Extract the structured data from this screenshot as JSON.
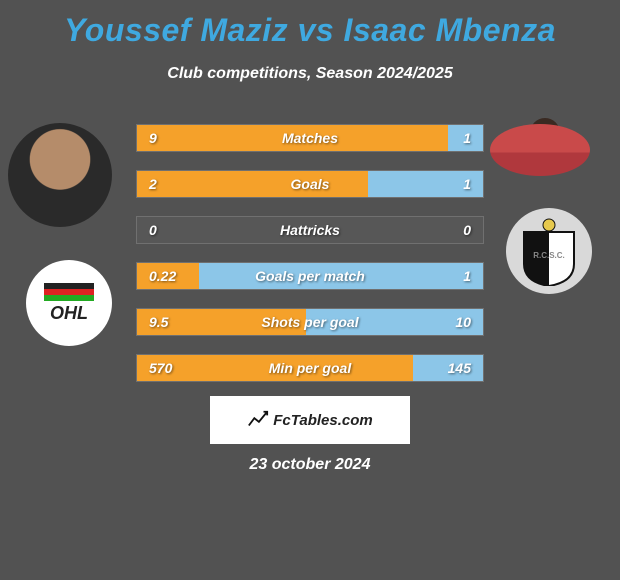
{
  "title": "Youssef Maziz vs Isaac Mbenza",
  "subtitle": "Club competitions, Season 2024/2025",
  "footer_brand": "FcTables.com",
  "date": "23 october 2024",
  "colors": {
    "left_bar": "#f5a12a",
    "right_bar": "#8cc6e8",
    "title": "#3fa9e0",
    "background": "#525252"
  },
  "players": {
    "left_name": "Youssef Maziz",
    "right_name": "Isaac Mbenza",
    "left_club": "OHL",
    "right_club": "R.C.S.C."
  },
  "stats": [
    {
      "label": "Matches",
      "left_display": "9",
      "right_display": "1",
      "left_pct": 90,
      "right_pct": 10
    },
    {
      "label": "Goals",
      "left_display": "2",
      "right_display": "1",
      "left_pct": 66.7,
      "right_pct": 33.3
    },
    {
      "label": "Hattricks",
      "left_display": "0",
      "right_display": "0",
      "left_pct": 0,
      "right_pct": 0
    },
    {
      "label": "Goals per match",
      "left_display": "0.22",
      "right_display": "1",
      "left_pct": 18,
      "right_pct": 82
    },
    {
      "label": "Shots per goal",
      "left_display": "9.5",
      "right_display": "10",
      "left_pct": 48.7,
      "right_pct": 51.3
    },
    {
      "label": "Min per goal",
      "left_display": "570",
      "right_display": "145",
      "left_pct": 79.7,
      "right_pct": 20.3
    }
  ]
}
